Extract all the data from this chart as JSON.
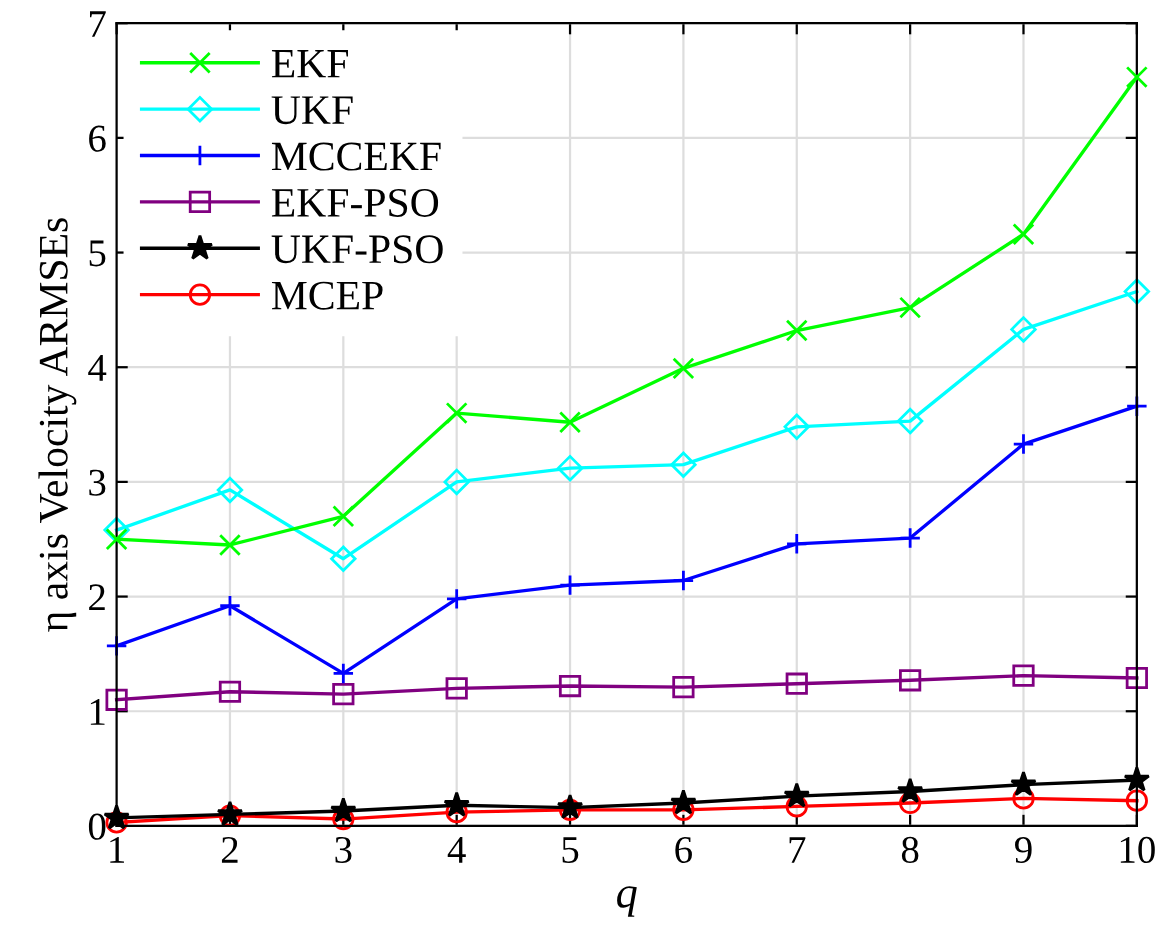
{
  "chart_data": {
    "type": "line",
    "xlabel": "q",
    "ylabel": "η axis Velocity ARMSEs",
    "x": [
      1,
      2,
      3,
      4,
      5,
      6,
      7,
      8,
      9,
      10
    ],
    "xlim": [
      1,
      10
    ],
    "xticks": [
      1,
      2,
      3,
      4,
      5,
      6,
      7,
      8,
      9,
      10
    ],
    "ylim": [
      0,
      7
    ],
    "yticks": [
      0,
      1,
      2,
      3,
      4,
      5,
      6,
      7
    ],
    "grid": true,
    "legend": "top left",
    "line_style": "solid",
    "series": [
      {
        "name": "EKF",
        "color": "#00ff00",
        "marker": "cross",
        "values": [
          2.5,
          2.45,
          2.7,
          3.6,
          3.52,
          3.99,
          4.32,
          4.52,
          5.16,
          6.53
        ]
      },
      {
        "name": "UKF",
        "color": "#00ffff",
        "marker": "diamond",
        "values": [
          2.58,
          2.93,
          2.33,
          3.0,
          3.12,
          3.15,
          3.48,
          3.53,
          4.33,
          4.66
        ]
      },
      {
        "name": "MCCEKF",
        "color": "#0000ff",
        "marker": "plus",
        "values": [
          1.57,
          1.92,
          1.33,
          1.98,
          2.1,
          2.14,
          2.46,
          2.51,
          3.33,
          3.66
        ]
      },
      {
        "name": "EKF-PSO",
        "color": "#800080",
        "marker": "square",
        "values": [
          1.1,
          1.17,
          1.15,
          1.2,
          1.22,
          1.21,
          1.24,
          1.27,
          1.31,
          1.29
        ]
      },
      {
        "name": "UKF-PSO",
        "color": "#000000",
        "marker": "star",
        "values": [
          0.07,
          0.1,
          0.13,
          0.18,
          0.16,
          0.2,
          0.26,
          0.3,
          0.36,
          0.4
        ]
      },
      {
        "name": "MCEP",
        "color": "#ff0000",
        "marker": "circle",
        "values": [
          0.03,
          0.09,
          0.06,
          0.12,
          0.14,
          0.14,
          0.17,
          0.2,
          0.24,
          0.22
        ]
      }
    ]
  }
}
